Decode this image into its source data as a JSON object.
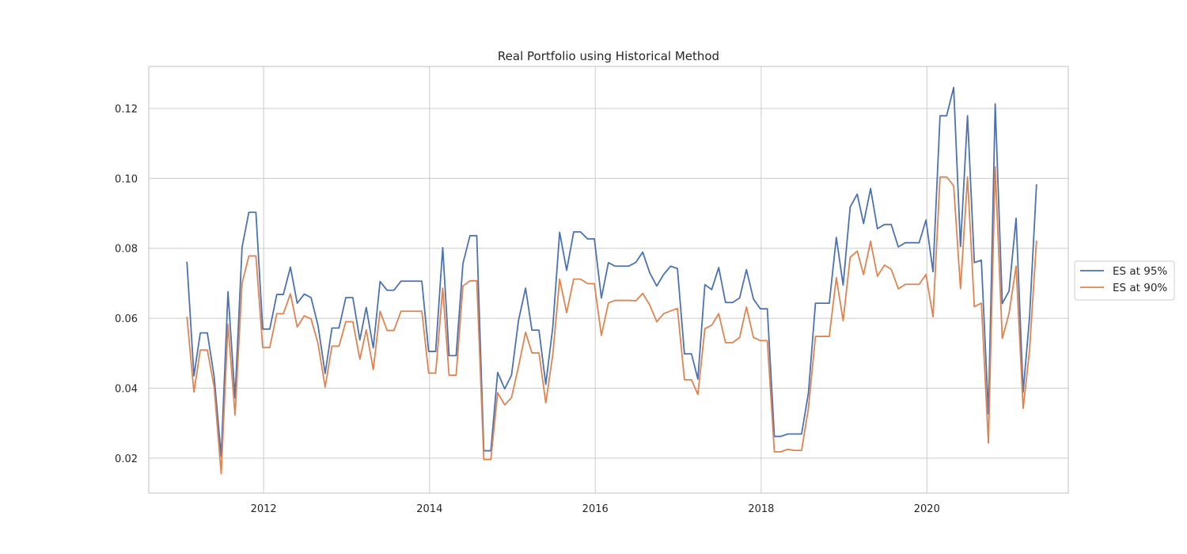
{
  "chart_data": {
    "type": "line",
    "title": "Real Portfolio using Historical Method",
    "xlabel": "",
    "ylabel": "",
    "xlim": [
      "2010-08-13",
      "2021-09-15"
    ],
    "ylim": [
      0.01,
      0.132
    ],
    "x_ticks": [
      "2012",
      "2014",
      "2016",
      "2018",
      "2020"
    ],
    "y_ticks": [
      0.02,
      0.04,
      0.06,
      0.08,
      0.1,
      0.12
    ],
    "y_tick_labels": [
      "0.02",
      "0.04",
      "0.06",
      "0.08",
      "0.10",
      "0.12"
    ],
    "grid": true,
    "legend": "outside-right",
    "x_start": "2011-01",
    "x_step": "1 month",
    "series": [
      {
        "name": "ES at 95%",
        "color": "#4c72b0",
        "values": [
          0.0762,
          0.0435,
          0.0558,
          0.0558,
          0.0433,
          0.0205,
          0.0676,
          0.0372,
          0.0803,
          0.0903,
          0.0903,
          0.0569,
          0.0569,
          0.0668,
          0.0668,
          0.0746,
          0.0643,
          0.0669,
          0.0659,
          0.0578,
          0.0442,
          0.0572,
          0.0572,
          0.0659,
          0.0659,
          0.0538,
          0.0631,
          0.0515,
          0.0705,
          0.068,
          0.068,
          0.0706,
          0.0706,
          0.0706,
          0.0706,
          0.0505,
          0.0505,
          0.0802,
          0.0493,
          0.0493,
          0.0756,
          0.0836,
          0.0836,
          0.0221,
          0.0221,
          0.0445,
          0.0398,
          0.0437,
          0.0594,
          0.0686,
          0.0566,
          0.0566,
          0.0411,
          0.0575,
          0.0846,
          0.0737,
          0.0847,
          0.0847,
          0.0827,
          0.0827,
          0.0658,
          0.0759,
          0.0749,
          0.0749,
          0.0749,
          0.076,
          0.0789,
          0.073,
          0.0692,
          0.0725,
          0.0749,
          0.0742,
          0.0498,
          0.0498,
          0.0426,
          0.0696,
          0.0682,
          0.0745,
          0.0645,
          0.0645,
          0.0658,
          0.0739,
          0.0655,
          0.0627,
          0.0627,
          0.0262,
          0.0262,
          0.0269,
          0.0269,
          0.0269,
          0.0386,
          0.0643,
          0.0643,
          0.0643,
          0.0831,
          0.0695,
          0.0918,
          0.0955,
          0.0871,
          0.0971,
          0.0856,
          0.0868,
          0.0868,
          0.0804,
          0.0816,
          0.0816,
          0.0816,
          0.0881,
          0.0733,
          0.1179,
          0.1179,
          0.126,
          0.0805,
          0.1179,
          0.0759,
          0.0766,
          0.0326,
          0.1213,
          0.0642,
          0.0678,
          0.0886,
          0.0389,
          0.06,
          0.0983
        ]
      },
      {
        "name": "ES at 90%",
        "color": "#dd8452",
        "values": [
          0.0604,
          0.0389,
          0.0509,
          0.0509,
          0.0403,
          0.0155,
          0.0583,
          0.0323,
          0.07,
          0.0778,
          0.0778,
          0.0516,
          0.0516,
          0.0613,
          0.0613,
          0.067,
          0.0575,
          0.0607,
          0.0598,
          0.0527,
          0.0403,
          0.052,
          0.052,
          0.059,
          0.059,
          0.0483,
          0.0567,
          0.0453,
          0.062,
          0.0565,
          0.0565,
          0.062,
          0.062,
          0.062,
          0.062,
          0.0443,
          0.0443,
          0.0686,
          0.0437,
          0.0437,
          0.0692,
          0.0707,
          0.0707,
          0.0196,
          0.0196,
          0.0387,
          0.0352,
          0.0373,
          0.0462,
          0.056,
          0.0501,
          0.0501,
          0.0358,
          0.0496,
          0.0712,
          0.0616,
          0.0712,
          0.0712,
          0.0699,
          0.0699,
          0.0551,
          0.0644,
          0.0651,
          0.0651,
          0.0651,
          0.065,
          0.0671,
          0.0638,
          0.059,
          0.0613,
          0.0621,
          0.0628,
          0.0424,
          0.0424,
          0.0382,
          0.057,
          0.058,
          0.0613,
          0.053,
          0.053,
          0.0545,
          0.0632,
          0.0545,
          0.0536,
          0.0536,
          0.0218,
          0.0218,
          0.0225,
          0.0222,
          0.0222,
          0.0342,
          0.0548,
          0.0548,
          0.0548,
          0.0716,
          0.0593,
          0.0774,
          0.0792,
          0.0725,
          0.082,
          0.072,
          0.0752,
          0.074,
          0.0684,
          0.0697,
          0.0697,
          0.0697,
          0.0725,
          0.0604,
          0.1004,
          0.1004,
          0.0979,
          0.0685,
          0.1004,
          0.0633,
          0.0643,
          0.0243,
          0.1033,
          0.0542,
          0.0614,
          0.0749,
          0.0342,
          0.0506,
          0.0822
        ]
      }
    ]
  }
}
